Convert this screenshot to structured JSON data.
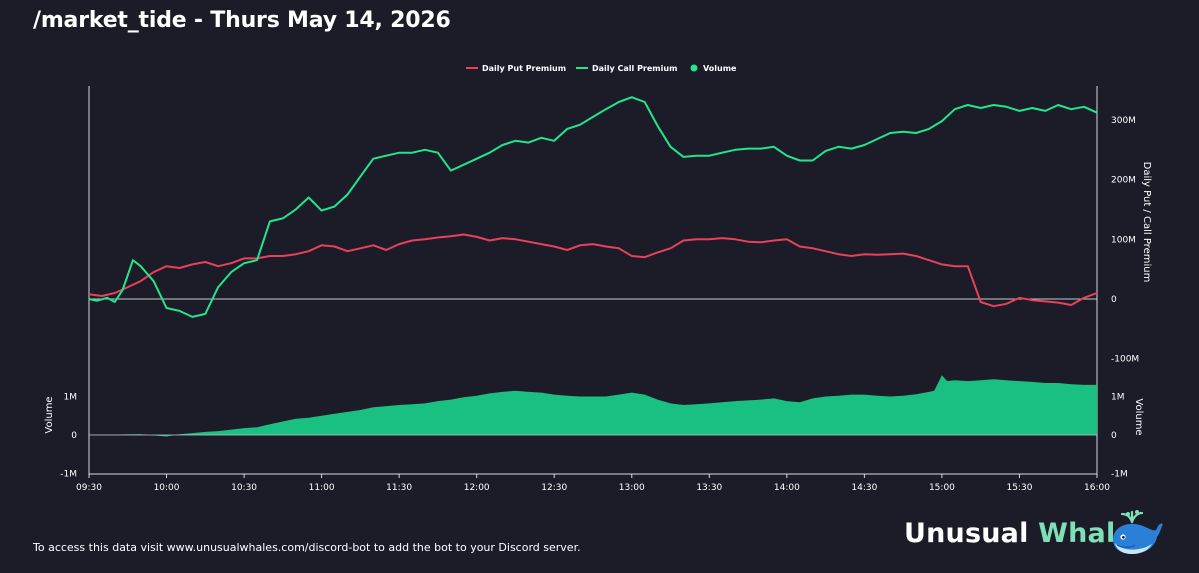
{
  "header": {
    "title": "/market_tide - Thurs May 14, 2026"
  },
  "footer": {
    "text": "To access this data visit www.unusualwhales.com/discord-bot to add the bot to your Discord server."
  },
  "brand": {
    "word1": "Unusual",
    "word2": "Whales",
    "logo_icon": "whale-icon"
  },
  "colors": {
    "background": "#1b1c27",
    "put": "#e8415a",
    "call": "#23e58c",
    "volume": "#1abf82"
  },
  "chart_data": {
    "type": "line",
    "legend": {
      "placement": "top-center",
      "entries": [
        "Daily Put Premium",
        "Daily Call Premium",
        "Volume"
      ]
    },
    "x": {
      "ticks": [
        "09:30",
        "10:00",
        "10:30",
        "11:00",
        "11:30",
        "12:00",
        "12:30",
        "13:00",
        "13:30",
        "14:00",
        "14:30",
        "15:00",
        "15:30",
        "16:00"
      ],
      "range": [
        "09:30",
        "16:00"
      ]
    },
    "premium_axis": {
      "label": "Daily Put / Call Premium",
      "ticks": [
        "300M",
        "200M",
        "100M",
        "0",
        "-100M"
      ],
      "ylim": [
        -110,
        350
      ],
      "unit": "M"
    },
    "volume_axis": {
      "left_label": "Volume",
      "right_label": "Volume",
      "ticks": [
        "1M",
        "0",
        "-1M"
      ],
      "ylim": [
        -1.0,
        1.0
      ],
      "unit": "M"
    },
    "series": [
      {
        "name": "Daily Put Premium",
        "color": "#e8415a",
        "points": [
          [
            "09:30",
            8
          ],
          [
            "09:35",
            5
          ],
          [
            "09:40",
            10
          ],
          [
            "09:45",
            20
          ],
          [
            "09:50",
            30
          ],
          [
            "09:55",
            45
          ],
          [
            "10:00",
            55
          ],
          [
            "10:05",
            52
          ],
          [
            "10:10",
            58
          ],
          [
            "10:15",
            62
          ],
          [
            "10:20",
            55
          ],
          [
            "10:25",
            60
          ],
          [
            "10:30",
            68
          ],
          [
            "10:35",
            68
          ],
          [
            "10:40",
            72
          ],
          [
            "10:45",
            72
          ],
          [
            "10:50",
            75
          ],
          [
            "10:55",
            80
          ],
          [
            "11:00",
            90
          ],
          [
            "11:05",
            88
          ],
          [
            "11:10",
            80
          ],
          [
            "11:15",
            85
          ],
          [
            "11:20",
            90
          ],
          [
            "11:25",
            82
          ],
          [
            "11:30",
            92
          ],
          [
            "11:35",
            98
          ],
          [
            "11:40",
            100
          ],
          [
            "11:45",
            103
          ],
          [
            "11:50",
            105
          ],
          [
            "11:55",
            108
          ],
          [
            "12:00",
            104
          ],
          [
            "12:05",
            98
          ],
          [
            "12:10",
            102
          ],
          [
            "12:15",
            100
          ],
          [
            "12:20",
            96
          ],
          [
            "12:25",
            92
          ],
          [
            "12:30",
            88
          ],
          [
            "12:35",
            82
          ],
          [
            "12:40",
            90
          ],
          [
            "12:45",
            92
          ],
          [
            "12:50",
            88
          ],
          [
            "12:55",
            85
          ],
          [
            "13:00",
            72
          ],
          [
            "13:05",
            70
          ],
          [
            "13:10",
            78
          ],
          [
            "13:15",
            85
          ],
          [
            "13:20",
            98
          ],
          [
            "13:25",
            100
          ],
          [
            "13:30",
            100
          ],
          [
            "13:35",
            102
          ],
          [
            "13:40",
            100
          ],
          [
            "13:45",
            96
          ],
          [
            "13:50",
            95
          ],
          [
            "13:55",
            98
          ],
          [
            "14:00",
            100
          ],
          [
            "14:05",
            88
          ],
          [
            "14:10",
            85
          ],
          [
            "14:15",
            80
          ],
          [
            "14:20",
            75
          ],
          [
            "14:25",
            72
          ],
          [
            "14:30",
            75
          ],
          [
            "14:35",
            74
          ],
          [
            "14:40",
            75
          ],
          [
            "14:45",
            76
          ],
          [
            "14:50",
            72
          ],
          [
            "14:55",
            65
          ],
          [
            "15:00",
            58
          ],
          [
            "15:05",
            55
          ],
          [
            "15:10",
            55
          ],
          [
            "15:15",
            -5
          ],
          [
            "15:20",
            -12
          ],
          [
            "15:25",
            -8
          ],
          [
            "15:30",
            2
          ],
          [
            "15:35",
            -2
          ],
          [
            "15:40",
            -4
          ],
          [
            "15:45",
            -6
          ],
          [
            "15:50",
            -10
          ],
          [
            "15:55",
            2
          ],
          [
            "16:00",
            10
          ]
        ]
      },
      {
        "name": "Daily Call Premium",
        "color": "#23e58c",
        "points": [
          [
            "09:30",
            0
          ],
          [
            "09:33",
            -3
          ],
          [
            "09:37",
            2
          ],
          [
            "09:40",
            -5
          ],
          [
            "09:43",
            15
          ],
          [
            "09:47",
            65
          ],
          [
            "09:50",
            55
          ],
          [
            "09:55",
            30
          ],
          [
            "10:00",
            -15
          ],
          [
            "10:05",
            -20
          ],
          [
            "10:10",
            -30
          ],
          [
            "10:15",
            -25
          ],
          [
            "10:20",
            20
          ],
          [
            "10:25",
            45
          ],
          [
            "10:30",
            60
          ],
          [
            "10:35",
            65
          ],
          [
            "10:40",
            130
          ],
          [
            "10:45",
            135
          ],
          [
            "10:50",
            150
          ],
          [
            "10:55",
            170
          ],
          [
            "11:00",
            148
          ],
          [
            "11:05",
            155
          ],
          [
            "11:10",
            175
          ],
          [
            "11:15",
            205
          ],
          [
            "11:20",
            235
          ],
          [
            "11:25",
            240
          ],
          [
            "11:30",
            245
          ],
          [
            "11:35",
            245
          ],
          [
            "11:40",
            250
          ],
          [
            "11:45",
            245
          ],
          [
            "11:50",
            215
          ],
          [
            "11:55",
            225
          ],
          [
            "12:00",
            235
          ],
          [
            "12:05",
            245
          ],
          [
            "12:10",
            258
          ],
          [
            "12:15",
            265
          ],
          [
            "12:20",
            262
          ],
          [
            "12:25",
            270
          ],
          [
            "12:30",
            265
          ],
          [
            "12:35",
            285
          ],
          [
            "12:40",
            292
          ],
          [
            "12:45",
            305
          ],
          [
            "12:50",
            318
          ],
          [
            "12:55",
            330
          ],
          [
            "13:00",
            338
          ],
          [
            "13:05",
            330
          ],
          [
            "13:10",
            290
          ],
          [
            "13:15",
            255
          ],
          [
            "13:20",
            238
          ],
          [
            "13:25",
            240
          ],
          [
            "13:30",
            240
          ],
          [
            "13:35",
            245
          ],
          [
            "13:40",
            250
          ],
          [
            "13:45",
            252
          ],
          [
            "13:50",
            252
          ],
          [
            "13:55",
            255
          ],
          [
            "14:00",
            240
          ],
          [
            "14:05",
            232
          ],
          [
            "14:10",
            232
          ],
          [
            "14:15",
            248
          ],
          [
            "14:20",
            255
          ],
          [
            "14:25",
            252
          ],
          [
            "14:30",
            258
          ],
          [
            "14:35",
            268
          ],
          [
            "14:40",
            278
          ],
          [
            "14:45",
            280
          ],
          [
            "14:50",
            278
          ],
          [
            "14:55",
            285
          ],
          [
            "15:00",
            298
          ],
          [
            "15:05",
            318
          ],
          [
            "15:10",
            325
          ],
          [
            "15:15",
            320
          ],
          [
            "15:20",
            325
          ],
          [
            "15:25",
            322
          ],
          [
            "15:30",
            315
          ],
          [
            "15:35",
            320
          ],
          [
            "15:40",
            315
          ],
          [
            "15:45",
            325
          ],
          [
            "15:50",
            318
          ],
          [
            "15:55",
            322
          ],
          [
            "16:00",
            312
          ]
        ]
      },
      {
        "name": "Volume",
        "color": "#1abf82",
        "type": "area",
        "points": [
          [
            "09:30",
            0.01
          ],
          [
            "09:40",
            0.01
          ],
          [
            "09:50",
            0.02
          ],
          [
            "10:00",
            -0.04
          ],
          [
            "10:05",
            0.02
          ],
          [
            "10:10",
            0.05
          ],
          [
            "10:15",
            0.08
          ],
          [
            "10:20",
            0.1
          ],
          [
            "10:25",
            0.14
          ],
          [
            "10:30",
            0.18
          ],
          [
            "10:35",
            0.2
          ],
          [
            "10:40",
            0.28
          ],
          [
            "10:45",
            0.35
          ],
          [
            "10:50",
            0.42
          ],
          [
            "10:55",
            0.45
          ],
          [
            "11:00",
            0.5
          ],
          [
            "11:05",
            0.55
          ],
          [
            "11:10",
            0.6
          ],
          [
            "11:15",
            0.65
          ],
          [
            "11:20",
            0.72
          ],
          [
            "11:25",
            0.75
          ],
          [
            "11:30",
            0.78
          ],
          [
            "11:35",
            0.8
          ],
          [
            "11:40",
            0.82
          ],
          [
            "11:45",
            0.88
          ],
          [
            "11:50",
            0.92
          ],
          [
            "11:55",
            0.98
          ],
          [
            "12:00",
            1.02
          ],
          [
            "12:05",
            1.08
          ],
          [
            "12:10",
            1.12
          ],
          [
            "12:15",
            1.15
          ],
          [
            "12:20",
            1.12
          ],
          [
            "12:25",
            1.1
          ],
          [
            "12:30",
            1.05
          ],
          [
            "12:35",
            1.02
          ],
          [
            "12:40",
            1.0
          ],
          [
            "12:45",
            1.0
          ],
          [
            "12:50",
            1.0
          ],
          [
            "12:55",
            1.05
          ],
          [
            "13:00",
            1.1
          ],
          [
            "13:05",
            1.05
          ],
          [
            "13:10",
            0.92
          ],
          [
            "13:15",
            0.82
          ],
          [
            "13:20",
            0.78
          ],
          [
            "13:25",
            0.8
          ],
          [
            "13:30",
            0.82
          ],
          [
            "13:35",
            0.85
          ],
          [
            "13:40",
            0.88
          ],
          [
            "13:45",
            0.9
          ],
          [
            "13:50",
            0.92
          ],
          [
            "13:55",
            0.95
          ],
          [
            "14:00",
            0.88
          ],
          [
            "14:05",
            0.85
          ],
          [
            "14:10",
            0.95
          ],
          [
            "14:15",
            1.0
          ],
          [
            "14:20",
            1.02
          ],
          [
            "14:25",
            1.05
          ],
          [
            "14:30",
            1.05
          ],
          [
            "14:35",
            1.02
          ],
          [
            "14:40",
            1.0
          ],
          [
            "14:45",
            1.02
          ],
          [
            "14:50",
            1.06
          ],
          [
            "14:55",
            1.12
          ],
          [
            "14:57",
            1.15
          ],
          [
            "15:00",
            1.55
          ],
          [
            "15:02",
            1.4
          ],
          [
            "15:05",
            1.42
          ],
          [
            "15:10",
            1.4
          ],
          [
            "15:15",
            1.42
          ],
          [
            "15:20",
            1.45
          ],
          [
            "15:25",
            1.42
          ],
          [
            "15:30",
            1.4
          ],
          [
            "15:35",
            1.38
          ],
          [
            "15:40",
            1.35
          ],
          [
            "15:45",
            1.35
          ],
          [
            "15:50",
            1.32
          ],
          [
            "15:55",
            1.3
          ],
          [
            "16:00",
            1.3
          ]
        ]
      }
    ]
  }
}
